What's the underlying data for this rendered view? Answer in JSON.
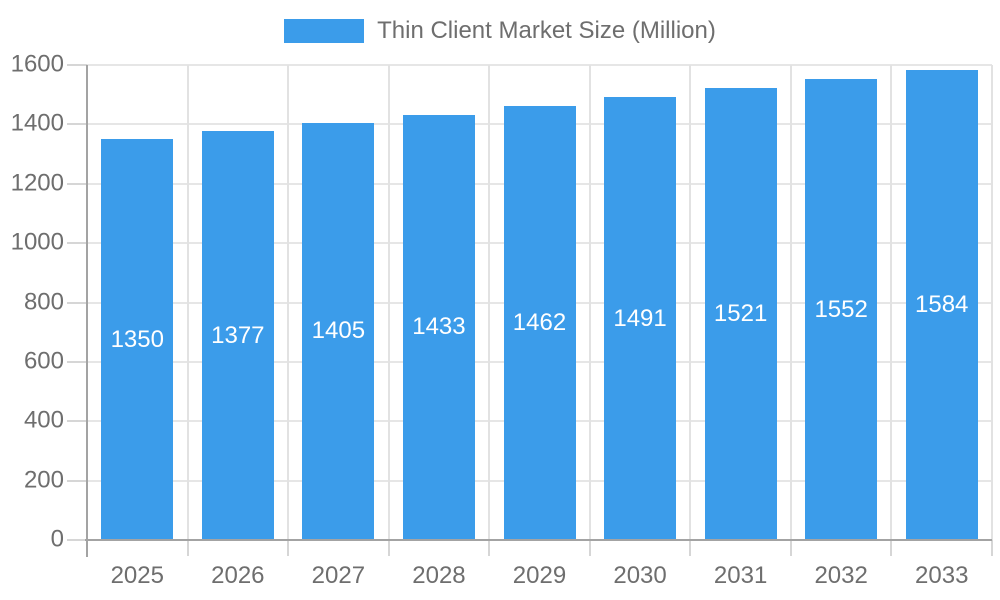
{
  "legend": {
    "label": "Thin Client Market Size (Million)",
    "swatch_color": "#3b9cea"
  },
  "chart_data": {
    "type": "bar",
    "title": "",
    "categories": [
      "2025",
      "2026",
      "2027",
      "2028",
      "2029",
      "2030",
      "2031",
      "2032",
      "2033"
    ],
    "series": [
      {
        "name": "Thin Client Market Size (Million)",
        "color": "#3b9cea",
        "values": [
          1350,
          1377,
          1405,
          1433,
          1462,
          1491,
          1521,
          1552,
          1584
        ]
      }
    ],
    "value_labels": {
      "shown": true,
      "position": "inside-center",
      "color": "#ffffff"
    },
    "xlabel": "",
    "ylabel": "",
    "ylim": [
      0,
      1600
    ],
    "ytick_step": 200,
    "grid": "on",
    "legend_position": "top-center",
    "axis_text_color": "#6e6e6e"
  }
}
